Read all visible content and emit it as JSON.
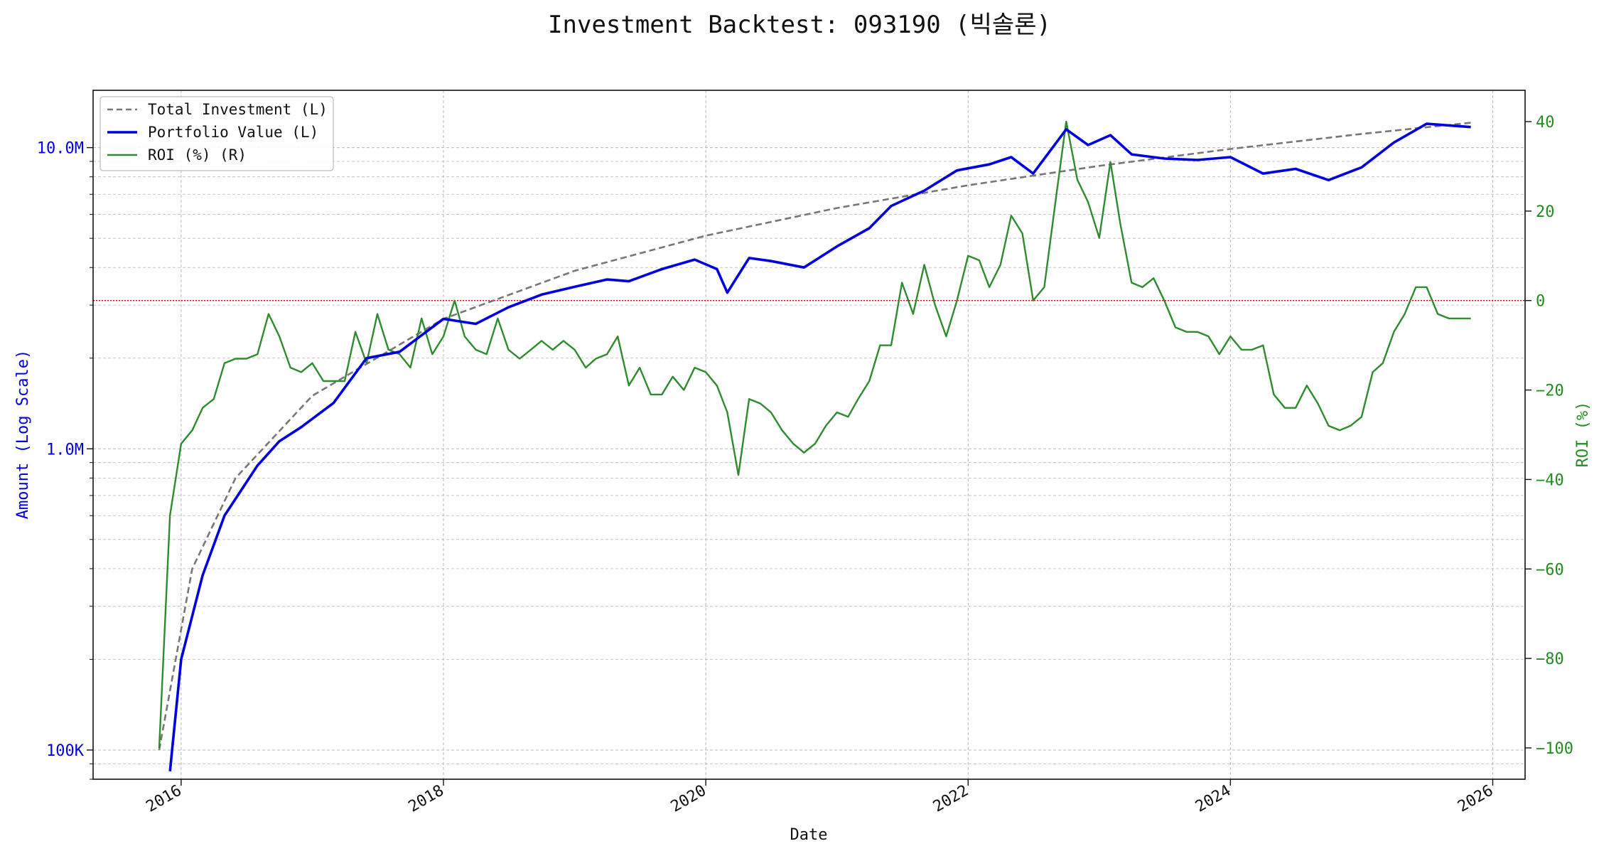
{
  "chart_data": {
    "type": "line",
    "title": "Investment Backtest: 093190 (빅솔론)",
    "xlabel": "Date",
    "ylabel_left": "Amount (Log Scale)",
    "ylabel_right": "ROI (%)",
    "y_left_scale": "log",
    "y_left_range": [
      80000,
      15500000
    ],
    "y_right_range": [
      -107,
      47
    ],
    "x_range": [
      "2015-05-01",
      "2026-04-01"
    ],
    "grid": true,
    "legend_position": "upper-left",
    "x_ticks": [
      {
        "date": "2016-01-01",
        "label": "2016"
      },
      {
        "date": "2018-01-01",
        "label": "2018"
      },
      {
        "date": "2020-01-01",
        "label": "2020"
      },
      {
        "date": "2022-01-01",
        "label": "2022"
      },
      {
        "date": "2024-01-01",
        "label": "2024"
      },
      {
        "date": "2026-01-01",
        "label": "2026"
      }
    ],
    "y_left_ticks": [
      {
        "value": 100000,
        "label": "100K"
      },
      {
        "value": 1000000,
        "label": "1.0M"
      },
      {
        "value": 10000000,
        "label": "10.0M"
      }
    ],
    "y_right_ticks": [
      {
        "value": 40,
        "label": "40"
      },
      {
        "value": 20,
        "label": "20"
      },
      {
        "value": 0,
        "label": "0"
      },
      {
        "value": -20,
        "label": "−20"
      },
      {
        "value": -40,
        "label": "−40"
      },
      {
        "value": -60,
        "label": "−60"
      },
      {
        "value": -80,
        "label": "−80"
      },
      {
        "value": -100,
        "label": "−100"
      }
    ],
    "reference_line": {
      "axis": "right",
      "value": 0,
      "color": "#cc0000"
    },
    "colors": {
      "total_investment": "#777777",
      "portfolio_value": "#0000dd",
      "roi": "#2e8b2e"
    },
    "series": [
      {
        "key": "total_investment",
        "name": "Total Investment (L)",
        "axis": "left",
        "style": "dashed",
        "x": [
          "2015-11-01",
          "2016-02-01",
          "2016-06-01",
          "2017-01-01",
          "2018-01-01",
          "2019-01-01",
          "2020-01-01",
          "2021-01-01",
          "2022-01-01",
          "2023-01-01",
          "2024-01-01",
          "2025-01-01",
          "2025-11-01"
        ],
        "values": [
          100000,
          400000,
          800000,
          1500000,
          2700000,
          3900000,
          5100000,
          6300000,
          7500000,
          8700000,
          9900000,
          11100000,
          12100000
        ]
      },
      {
        "key": "portfolio_value",
        "name": "Portfolio Value (L)",
        "axis": "left",
        "style": "solid",
        "x": [
          "2015-12-01",
          "2016-01-01",
          "2016-03-01",
          "2016-05-01",
          "2016-08-01",
          "2016-10-01",
          "2016-12-01",
          "2017-03-01",
          "2017-06-01",
          "2017-09-01",
          "2018-01-01",
          "2018-04-01",
          "2018-07-01",
          "2018-10-01",
          "2019-01-01",
          "2019-04-01",
          "2019-06-01",
          "2019-09-01",
          "2019-12-01",
          "2020-02-01",
          "2020-03-01",
          "2020-05-01",
          "2020-07-01",
          "2020-10-01",
          "2021-01-01",
          "2021-04-01",
          "2021-06-01",
          "2021-09-01",
          "2021-12-01",
          "2022-03-01",
          "2022-05-01",
          "2022-07-01",
          "2022-10-01",
          "2022-12-01",
          "2023-02-01",
          "2023-04-01",
          "2023-07-01",
          "2023-10-01",
          "2024-01-01",
          "2024-04-01",
          "2024-07-01",
          "2024-10-01",
          "2025-01-01",
          "2025-04-01",
          "2025-07-01",
          "2025-11-01"
        ],
        "values": [
          85000,
          200000,
          380000,
          600000,
          880000,
          1060000,
          1180000,
          1420000,
          2000000,
          2100000,
          2700000,
          2600000,
          2950000,
          3250000,
          3450000,
          3650000,
          3600000,
          3950000,
          4250000,
          3950000,
          3300000,
          4300000,
          4200000,
          4000000,
          4700000,
          5400000,
          6400000,
          7200000,
          8400000,
          8800000,
          9300000,
          8200000,
          11500000,
          10200000,
          11000000,
          9500000,
          9200000,
          9100000,
          9300000,
          8200000,
          8500000,
          7800000,
          8600000,
          10400000,
          12000000,
          11700000
        ]
      },
      {
        "key": "roi",
        "name": "ROI (%) (R)",
        "axis": "right",
        "style": "solid",
        "x": [
          "2015-11-01",
          "2015-12-01",
          "2016-01-01",
          "2016-02-01",
          "2016-03-01",
          "2016-04-01",
          "2016-05-01",
          "2016-06-01",
          "2016-07-01",
          "2016-08-01",
          "2016-09-01",
          "2016-10-01",
          "2016-11-01",
          "2016-12-01",
          "2017-01-01",
          "2017-02-01",
          "2017-03-01",
          "2017-04-01",
          "2017-05-01",
          "2017-06-01",
          "2017-07-01",
          "2017-08-01",
          "2017-09-01",
          "2017-10-01",
          "2017-11-01",
          "2017-12-01",
          "2018-01-01",
          "2018-02-01",
          "2018-03-01",
          "2018-04-01",
          "2018-05-01",
          "2018-06-01",
          "2018-07-01",
          "2018-08-01",
          "2018-09-01",
          "2018-10-01",
          "2018-11-01",
          "2018-12-01",
          "2019-01-01",
          "2019-02-01",
          "2019-03-01",
          "2019-04-01",
          "2019-05-01",
          "2019-06-01",
          "2019-07-01",
          "2019-08-01",
          "2019-09-01",
          "2019-10-01",
          "2019-11-01",
          "2019-12-01",
          "2020-01-01",
          "2020-02-01",
          "2020-03-01",
          "2020-04-01",
          "2020-05-01",
          "2020-06-01",
          "2020-07-01",
          "2020-08-01",
          "2020-09-01",
          "2020-10-01",
          "2020-11-01",
          "2020-12-01",
          "2021-01-01",
          "2021-02-01",
          "2021-03-01",
          "2021-04-01",
          "2021-05-01",
          "2021-06-01",
          "2021-07-01",
          "2021-08-01",
          "2021-09-01",
          "2021-10-01",
          "2021-11-01",
          "2021-12-01",
          "2022-01-01",
          "2022-02-01",
          "2022-03-01",
          "2022-04-01",
          "2022-05-01",
          "2022-06-01",
          "2022-07-01",
          "2022-08-01",
          "2022-09-01",
          "2022-10-01",
          "2022-11-01",
          "2022-12-01",
          "2023-01-01",
          "2023-02-01",
          "2023-03-01",
          "2023-04-01",
          "2023-05-01",
          "2023-06-01",
          "2023-07-01",
          "2023-08-01",
          "2023-09-01",
          "2023-10-01",
          "2023-11-01",
          "2023-12-01",
          "2024-01-01",
          "2024-02-01",
          "2024-03-01",
          "2024-04-01",
          "2024-05-01",
          "2024-06-01",
          "2024-07-01",
          "2024-08-01",
          "2024-09-01",
          "2024-10-01",
          "2024-11-01",
          "2024-12-01",
          "2025-01-01",
          "2025-02-01",
          "2025-03-01",
          "2025-04-01",
          "2025-05-01",
          "2025-06-01",
          "2025-07-01",
          "2025-08-01",
          "2025-09-01",
          "2025-11-01"
        ],
        "values": [
          -100,
          -48,
          -32,
          -29,
          -24,
          -22,
          -14,
          -13,
          -13,
          -12,
          -3,
          -8,
          -15,
          -16,
          -14,
          -18,
          -18,
          -18,
          -7,
          -14,
          -3,
          -11,
          -12,
          -15,
          -4,
          -12,
          -8,
          0,
          -8,
          -11,
          -12,
          -4,
          -11,
          -13,
          -11,
          -9,
          -11,
          -9,
          -11,
          -15,
          -13,
          -12,
          -8,
          -19,
          -15,
          -21,
          -21,
          -17,
          -20,
          -15,
          -16,
          -19,
          -25,
          -39,
          -22,
          -23,
          -25,
          -29,
          -32,
          -34,
          -32,
          -28,
          -25,
          -26,
          -22,
          -18,
          -10,
          -10,
          4,
          -3,
          8,
          -1,
          -8,
          0,
          10,
          9,
          3,
          8,
          19,
          15,
          0,
          3,
          22,
          40,
          27,
          22,
          14,
          31,
          17,
          4,
          3,
          5,
          0,
          -6,
          -7,
          -7,
          -8,
          -12,
          -8,
          -11,
          -11,
          -10,
          -21,
          -24,
          -24,
          -19,
          -23,
          -28,
          -29,
          -28,
          -26,
          -16,
          -14,
          -7,
          -3,
          3,
          3,
          -3,
          -4,
          -4
        ]
      }
    ]
  }
}
